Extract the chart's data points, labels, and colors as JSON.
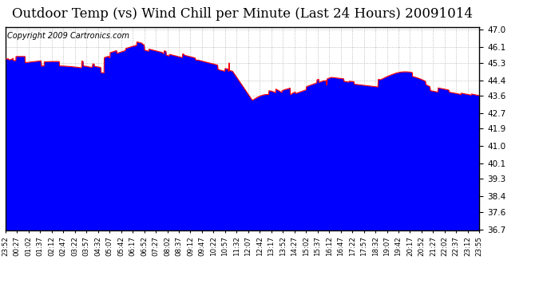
{
  "title": "Outdoor Temp (vs) Wind Chill per Minute (Last 24 Hours) 20091014",
  "copyright": "Copyright 2009 Cartronics.com",
  "y_min": 36.7,
  "y_max": 47.0,
  "y_ticks": [
    47.0,
    46.1,
    45.3,
    44.4,
    43.6,
    42.7,
    41.9,
    41.0,
    40.1,
    39.3,
    38.4,
    37.6,
    36.7
  ],
  "x_labels": [
    "23:52",
    "00:27",
    "01:02",
    "01:37",
    "02:12",
    "02:47",
    "03:22",
    "03:57",
    "04:32",
    "05:07",
    "05:42",
    "06:17",
    "06:52",
    "07:27",
    "08:02",
    "08:37",
    "09:12",
    "09:47",
    "10:22",
    "10:57",
    "11:32",
    "12:07",
    "12:42",
    "13:17",
    "13:52",
    "14:27",
    "15:02",
    "15:37",
    "16:12",
    "16:47",
    "17:22",
    "17:57",
    "18:32",
    "19:07",
    "19:42",
    "20:17",
    "20:52",
    "21:27",
    "22:02",
    "22:37",
    "23:12",
    "23:55"
  ],
  "blue_color": "#0000FF",
  "red_color": "#FF0000",
  "background_color": "#FFFFFF",
  "plot_bg_color": "#FFFFFF",
  "grid_color": "#999999",
  "title_fontsize": 12,
  "copyright_fontsize": 7
}
